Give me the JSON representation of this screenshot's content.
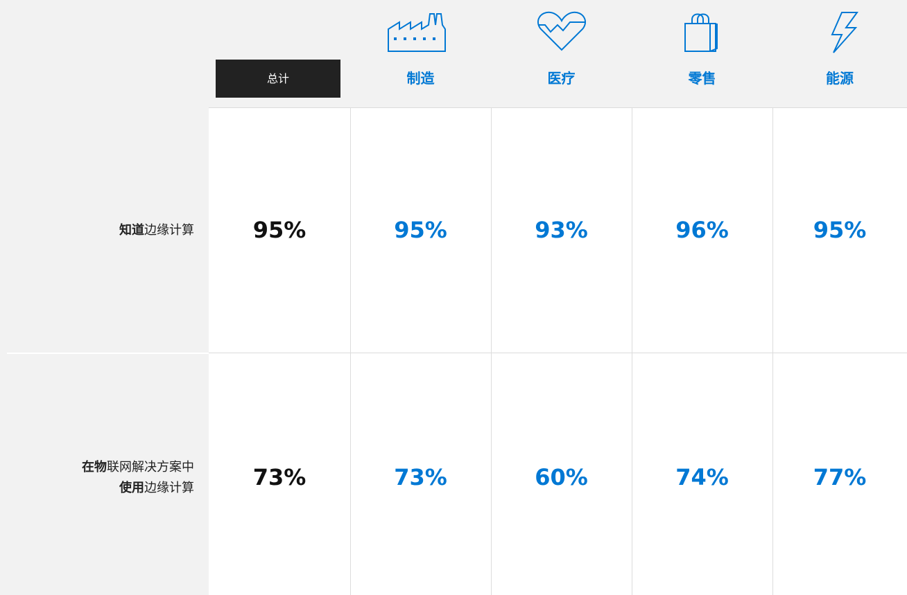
{
  "header": {
    "columns": [
      "总计",
      "制造",
      "医疗",
      "零售",
      "能源"
    ]
  },
  "table": {
    "rows": [
      {
        "label": [
          [
            {
              "text": "知道",
              "bold": true
            },
            {
              "text": "边缘计算",
              "bold": false
            }
          ]
        ],
        "values": [
          "95%",
          "95%",
          "93%",
          "96%",
          "95%"
        ]
      },
      {
        "label": [
          [
            {
              "text": "在物",
              "bold": true
            },
            {
              "text": "联网解决方案中",
              "bold": false
            }
          ],
          [
            {
              "text": "使用",
              "bold": true
            },
            {
              "text": "边缘计算",
              "bold": false
            }
          ]
        ],
        "values": [
          "73%",
          "73%",
          "60%",
          "74%",
          "77%"
        ]
      }
    ]
  }
}
